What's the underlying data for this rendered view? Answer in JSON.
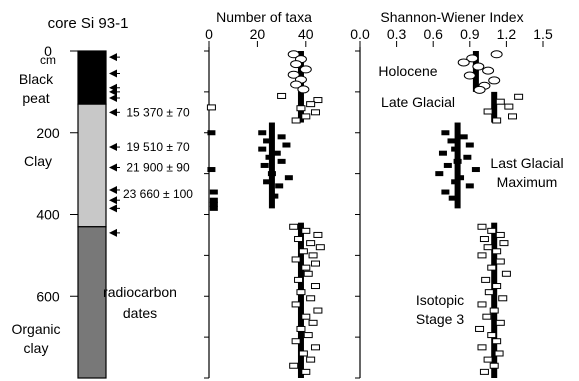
{
  "chart_data": {
    "type": "scatter",
    "core": {
      "title": "core Si 93-1",
      "depth_unit": "cm",
      "depth_ticks": [
        0,
        200,
        400,
        600
      ],
      "units": [
        {
          "label": "Black peat",
          "top": 0,
          "bottom": 130,
          "color": "#000000"
        },
        {
          "label": "Clay",
          "top": 130,
          "bottom": 430,
          "color": "#c8c8c8"
        },
        {
          "label": "Organic clay",
          "top": 430,
          "bottom": 800,
          "color": "#787878"
        }
      ],
      "radiocarbon_label": "radiocarbon dates",
      "radiocarbon_arrow_depths": [
        15,
        55,
        90,
        100,
        115,
        150,
        235,
        285,
        340,
        365,
        385,
        445
      ],
      "dates": [
        {
          "label": "15 370 ± 70",
          "depth": 150
        },
        {
          "label": "19 510 ± 70",
          "depth": 235
        },
        {
          "label": "21 900 ± 90",
          "depth": 285
        },
        {
          "label": "23 660 ± 100",
          "depth": 350
        }
      ]
    },
    "periods": [
      {
        "label": "Holocene",
        "depth": 55
      },
      {
        "label": "Late Glacial",
        "depth": 125
      },
      {
        "label": "Last Glacial Maximum",
        "line1": "Last Glacial",
        "line2": "Maximum",
        "depth": 265
      },
      {
        "label": "Isotopic Stage 3",
        "line1": "Isotopic",
        "line2": "Stage 3",
        "depth": 640
      }
    ],
    "taxa": {
      "xlabel": "Number of taxa",
      "xlim": [
        0,
        50
      ],
      "xticks": [
        0,
        20,
        40
      ],
      "mean_segments": [
        {
          "x": 38,
          "top": 0,
          "bottom": 100
        },
        {
          "x": 38,
          "top": 100,
          "bottom": 175
        },
        {
          "x": 26,
          "top": 175,
          "bottom": 385
        },
        {
          "x": 38,
          "top": 420,
          "bottom": 800
        }
      ],
      "samples": [
        {
          "depth": 8,
          "value": 35,
          "style": "circle"
        },
        {
          "depth": 20,
          "value": 38,
          "style": "circle"
        },
        {
          "depth": 32,
          "value": 36,
          "style": "circle"
        },
        {
          "depth": 45,
          "value": 40,
          "style": "circle"
        },
        {
          "depth": 58,
          "value": 35,
          "style": "circle"
        },
        {
          "depth": 70,
          "value": 38,
          "style": "circle"
        },
        {
          "depth": 82,
          "value": 36,
          "style": "circle"
        },
        {
          "depth": 94,
          "value": 39,
          "style": "circle"
        },
        {
          "depth": 110,
          "value": 30,
          "style": "open"
        },
        {
          "depth": 120,
          "value": 45,
          "style": "open"
        },
        {
          "depth": 130,
          "value": 42,
          "style": "open"
        },
        {
          "depth": 140,
          "value": 38,
          "style": "open"
        },
        {
          "depth": 150,
          "value": 44,
          "style": "open"
        },
        {
          "depth": 160,
          "value": 40,
          "style": "open"
        },
        {
          "depth": 170,
          "value": 36,
          "style": "open"
        },
        {
          "depth": 138,
          "value": 1,
          "style": "open"
        },
        {
          "depth": 200,
          "value": 1,
          "style": "filled"
        },
        {
          "depth": 200,
          "value": 22,
          "style": "filled"
        },
        {
          "depth": 210,
          "value": 30,
          "style": "filled"
        },
        {
          "depth": 220,
          "value": 24,
          "style": "filled"
        },
        {
          "depth": 230,
          "value": 32,
          "style": "filled"
        },
        {
          "depth": 240,
          "value": 22,
          "style": "filled"
        },
        {
          "depth": 250,
          "value": 28,
          "style": "filled"
        },
        {
          "depth": 260,
          "value": 25,
          "style": "filled"
        },
        {
          "depth": 270,
          "value": 30,
          "style": "filled"
        },
        {
          "depth": 280,
          "value": 23,
          "style": "filled"
        },
        {
          "depth": 290,
          "value": 1,
          "style": "filled"
        },
        {
          "depth": 300,
          "value": 26,
          "style": "filled"
        },
        {
          "depth": 310,
          "value": 33,
          "style": "filled"
        },
        {
          "depth": 320,
          "value": 24,
          "style": "filled"
        },
        {
          "depth": 330,
          "value": 29,
          "style": "filled"
        },
        {
          "depth": 345,
          "value": 2,
          "style": "filled"
        },
        {
          "depth": 355,
          "value": 27,
          "style": "filled"
        },
        {
          "depth": 365,
          "value": 2,
          "style": "filled"
        },
        {
          "depth": 375,
          "value": 2,
          "style": "filled"
        },
        {
          "depth": 385,
          "value": 2,
          "style": "filled"
        },
        {
          "depth": 430,
          "value": 35,
          "style": "open"
        },
        {
          "depth": 440,
          "value": 40,
          "style": "open"
        },
        {
          "depth": 450,
          "value": 45,
          "style": "open"
        },
        {
          "depth": 460,
          "value": 37,
          "style": "open"
        },
        {
          "depth": 470,
          "value": 42,
          "style": "open"
        },
        {
          "depth": 480,
          "value": 46,
          "style": "open"
        },
        {
          "depth": 490,
          "value": 39,
          "style": "open"
        },
        {
          "depth": 500,
          "value": 43,
          "style": "open"
        },
        {
          "depth": 510,
          "value": 36,
          "style": "open"
        },
        {
          "depth": 520,
          "value": 44,
          "style": "open"
        },
        {
          "depth": 530,
          "value": 40,
          "style": "open"
        },
        {
          "depth": 545,
          "value": 41,
          "style": "open"
        },
        {
          "depth": 560,
          "value": 37,
          "style": "open"
        },
        {
          "depth": 575,
          "value": 44,
          "style": "open"
        },
        {
          "depth": 590,
          "value": 38,
          "style": "open"
        },
        {
          "depth": 605,
          "value": 42,
          "style": "open"
        },
        {
          "depth": 620,
          "value": 36,
          "style": "open"
        },
        {
          "depth": 635,
          "value": 45,
          "style": "open"
        },
        {
          "depth": 650,
          "value": 40,
          "style": "open"
        },
        {
          "depth": 665,
          "value": 43,
          "style": "open"
        },
        {
          "depth": 680,
          "value": 38,
          "style": "open"
        },
        {
          "depth": 695,
          "value": 41,
          "style": "open"
        },
        {
          "depth": 710,
          "value": 36,
          "style": "open"
        },
        {
          "depth": 725,
          "value": 44,
          "style": "open"
        },
        {
          "depth": 740,
          "value": 39,
          "style": "open"
        },
        {
          "depth": 755,
          "value": 42,
          "style": "open"
        },
        {
          "depth": 770,
          "value": 35,
          "style": "open"
        },
        {
          "depth": 785,
          "value": 40,
          "style": "open"
        }
      ]
    },
    "shannon": {
      "xlabel": "Shannon-Wiener Index",
      "xlim": [
        0,
        1.5
      ],
      "xticks": [
        "0.0",
        "0.3",
        "0.6",
        "0.9",
        "1.2",
        "1.5"
      ],
      "mean_segments": [
        {
          "x": 0.95,
          "top": 0,
          "bottom": 100
        },
        {
          "x": 1.1,
          "top": 100,
          "bottom": 175
        },
        {
          "x": 0.8,
          "top": 175,
          "bottom": 385
        },
        {
          "x": 1.1,
          "top": 420,
          "bottom": 800
        }
      ],
      "samples": [
        {
          "depth": 8,
          "value": 1.12,
          "style": "circle"
        },
        {
          "depth": 18,
          "value": 0.92,
          "style": "circle"
        },
        {
          "depth": 28,
          "value": 0.85,
          "style": "circle"
        },
        {
          "depth": 38,
          "value": 0.97,
          "style": "circle"
        },
        {
          "depth": 48,
          "value": 1.05,
          "style": "circle"
        },
        {
          "depth": 60,
          "value": 0.9,
          "style": "circle"
        },
        {
          "depth": 72,
          "value": 1.1,
          "style": "circle"
        },
        {
          "depth": 85,
          "value": 1.02,
          "style": "circle"
        },
        {
          "depth": 95,
          "value": 0.98,
          "style": "circle"
        },
        {
          "depth": 112,
          "value": 1.3,
          "style": "open"
        },
        {
          "depth": 124,
          "value": 1.15,
          "style": "open"
        },
        {
          "depth": 136,
          "value": 1.22,
          "style": "open"
        },
        {
          "depth": 148,
          "value": 1.05,
          "style": "open"
        },
        {
          "depth": 160,
          "value": 1.25,
          "style": "open"
        },
        {
          "depth": 170,
          "value": 1.12,
          "style": "open"
        },
        {
          "depth": 200,
          "value": 0.7,
          "style": "filled"
        },
        {
          "depth": 210,
          "value": 0.85,
          "style": "filled"
        },
        {
          "depth": 220,
          "value": 0.75,
          "style": "filled"
        },
        {
          "depth": 230,
          "value": 0.9,
          "style": "filled"
        },
        {
          "depth": 240,
          "value": 0.78,
          "style": "filled"
        },
        {
          "depth": 250,
          "value": 0.68,
          "style": "filled"
        },
        {
          "depth": 260,
          "value": 0.88,
          "style": "filled"
        },
        {
          "depth": 270,
          "value": 0.8,
          "style": "filled"
        },
        {
          "depth": 280,
          "value": 0.72,
          "style": "filled"
        },
        {
          "depth": 290,
          "value": 0.95,
          "style": "filled"
        },
        {
          "depth": 300,
          "value": 0.65,
          "style": "filled"
        },
        {
          "depth": 310,
          "value": 0.82,
          "style": "filled"
        },
        {
          "depth": 320,
          "value": 0.78,
          "style": "filled"
        },
        {
          "depth": 330,
          "value": 0.9,
          "style": "filled"
        },
        {
          "depth": 345,
          "value": 0.7,
          "style": "filled"
        },
        {
          "depth": 360,
          "value": 0.76,
          "style": "filled"
        },
        {
          "depth": 430,
          "value": 1.0,
          "style": "open"
        },
        {
          "depth": 440,
          "value": 1.08,
          "style": "open"
        },
        {
          "depth": 450,
          "value": 1.15,
          "style": "open"
        },
        {
          "depth": 460,
          "value": 1.02,
          "style": "open"
        },
        {
          "depth": 470,
          "value": 1.18,
          "style": "open"
        },
        {
          "depth": 480,
          "value": 1.05,
          "style": "open"
        },
        {
          "depth": 490,
          "value": 1.12,
          "style": "open"
        },
        {
          "depth": 500,
          "value": 1.0,
          "style": "open"
        },
        {
          "depth": 515,
          "value": 1.15,
          "style": "open"
        },
        {
          "depth": 530,
          "value": 1.08,
          "style": "open"
        },
        {
          "depth": 545,
          "value": 1.2,
          "style": "open"
        },
        {
          "depth": 560,
          "value": 1.03,
          "style": "open"
        },
        {
          "depth": 575,
          "value": 1.12,
          "style": "open"
        },
        {
          "depth": 590,
          "value": 1.06,
          "style": "open"
        },
        {
          "depth": 605,
          "value": 1.17,
          "style": "open"
        },
        {
          "depth": 620,
          "value": 1.0,
          "style": "open"
        },
        {
          "depth": 635,
          "value": 1.1,
          "style": "open"
        },
        {
          "depth": 650,
          "value": 1.04,
          "style": "open"
        },
        {
          "depth": 665,
          "value": 1.15,
          "style": "open"
        },
        {
          "depth": 680,
          "value": 0.98,
          "style": "open"
        },
        {
          "depth": 695,
          "value": 1.08,
          "style": "open"
        },
        {
          "depth": 710,
          "value": 1.12,
          "style": "open"
        },
        {
          "depth": 725,
          "value": 1.0,
          "style": "open"
        },
        {
          "depth": 740,
          "value": 1.14,
          "style": "open"
        },
        {
          "depth": 755,
          "value": 1.05,
          "style": "open"
        },
        {
          "depth": 770,
          "value": 1.1,
          "style": "open"
        },
        {
          "depth": 785,
          "value": 1.02,
          "style": "open"
        }
      ]
    },
    "ylim": [
      0,
      800
    ]
  }
}
